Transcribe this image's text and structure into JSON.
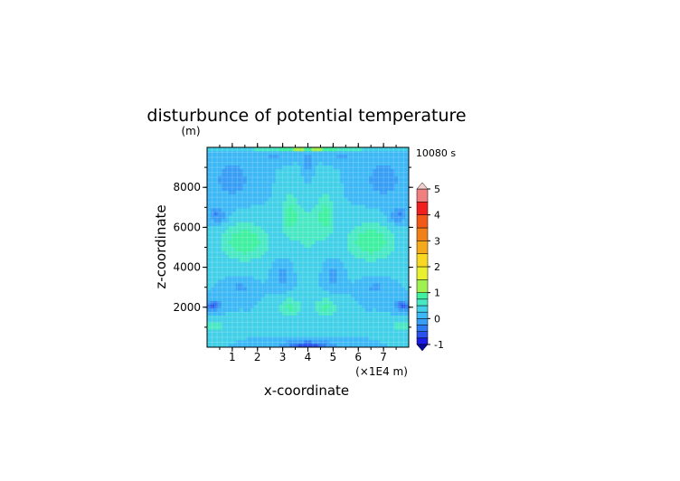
{
  "chart_data": {
    "type": "heatmap",
    "title": "disturbunce of potential temperature",
    "ylabel": "z-coordinate",
    "yunit": "(m)",
    "xlabel": "x-coordinate",
    "xunit": "(×1E4 m)",
    "time_label": "10080 s",
    "xlim": [
      0,
      8
    ],
    "ylim": [
      0,
      10000
    ],
    "x_ticks": [
      1,
      2,
      3,
      4,
      5,
      6,
      7
    ],
    "x_tick_labels": [
      "1",
      "2",
      "3",
      "4",
      "5",
      "6",
      "7"
    ],
    "y_ticks": [
      2000,
      4000,
      6000,
      8000
    ],
    "y_tick_labels": [
      "2000",
      "4000",
      "6000",
      "8000"
    ],
    "colorbar": {
      "levels": [
        -1,
        -0.75,
        -0.5,
        -0.25,
        0,
        0.25,
        0.5,
        0.75,
        1,
        1.5,
        2,
        2.5,
        3,
        3.5,
        4,
        4.5,
        5
      ],
      "tick_values": [
        -1,
        0,
        1,
        2,
        3,
        4,
        5
      ],
      "tick_labels": [
        "-1",
        "0",
        "1",
        "2",
        "3",
        "4",
        "5"
      ],
      "colors": [
        "#1c1ce6",
        "#2a50ee",
        "#2f79f2",
        "#379df5",
        "#3db8f6",
        "#42d0e8",
        "#49e8c4",
        "#3ef0a0",
        "#a0f050",
        "#e8f030",
        "#f8d820",
        "#f4aa1a",
        "#f28018",
        "#f25818",
        "#f02020",
        "#f08080"
      ],
      "under_color": "#0a0a9c",
      "over_color": "#f4d0d0"
    },
    "field_description": [
      {
        "x": 4.0,
        "z": 300,
        "value": -0.9
      },
      {
        "x": 1.4,
        "z": 5300,
        "value": 0.8
      },
      {
        "x": 4.0,
        "z": 5900,
        "value": 0.9
      },
      {
        "x": 6.6,
        "z": 5300,
        "value": 0.8
      },
      {
        "x": 0.3,
        "z": 2100,
        "value": -0.6
      },
      {
        "x": 7.7,
        "z": 2100,
        "value": -0.6
      },
      {
        "x": 4.0,
        "z": 9900,
        "value": 1.2
      }
    ]
  }
}
